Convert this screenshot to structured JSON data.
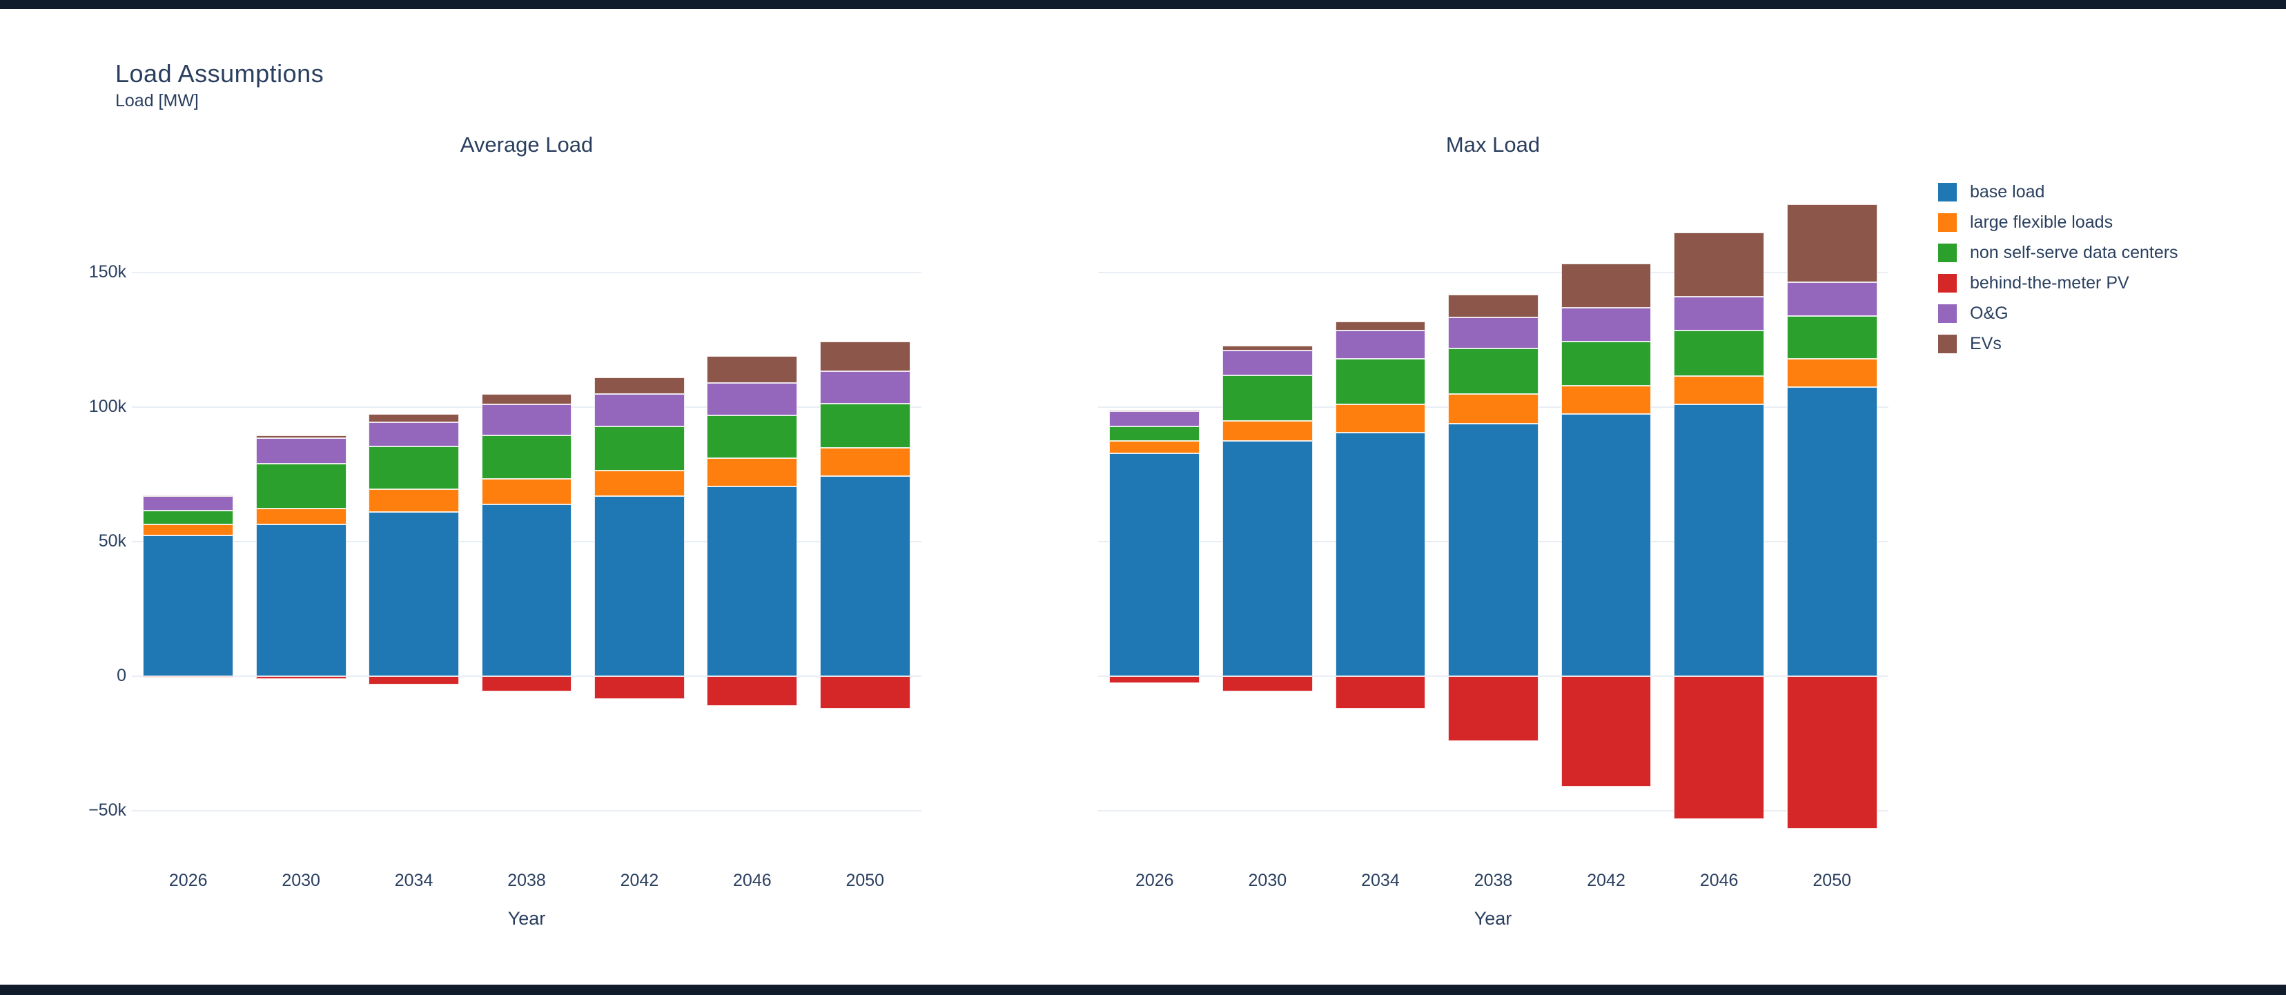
{
  "page": {
    "title": "Load Assumptions",
    "subtitle": "Load [MW]",
    "strip_color": "#101b2c",
    "text_color": "#2a3f5f",
    "grid_color": "#e9edf4",
    "background": "#ffffff"
  },
  "legend": {
    "position": "top-right",
    "items": [
      {
        "label": "base load",
        "color": "#1f77b4"
      },
      {
        "label": "large flexible loads",
        "color": "#ff7f0e"
      },
      {
        "label": "non self-serve data centers",
        "color": "#2ca02c"
      },
      {
        "label": "behind-the-meter PV",
        "color": "#d62728"
      },
      {
        "label": "O&G",
        "color": "#9467bd"
      },
      {
        "label": "EVs",
        "color": "#8c564b"
      }
    ]
  },
  "layout_values": {
    "y_axis_side": "left-plot-only",
    "bar_mode": "relative-stacked"
  },
  "chart_data": [
    {
      "type": "bar",
      "title": "Average Load",
      "xlabel": "Year",
      "ylabel": "Load [MW]",
      "stacked": true,
      "grid": true,
      "ylim": [
        -63500,
        177000
      ],
      "y_ticks": [
        {
          "label": "150k",
          "value": 150000
        },
        {
          "label": "100k",
          "value": 100000
        },
        {
          "label": "50k",
          "value": 50000
        },
        {
          "label": "0",
          "value": 0
        },
        {
          "label": "−50k",
          "value": -50000
        }
      ],
      "categories": [
        "2026",
        "2030",
        "2034",
        "2038",
        "2042",
        "2046",
        "2050"
      ],
      "series": [
        {
          "name": "base load",
          "color": "#1f77b4",
          "values": [
            52500,
            56500,
            61000,
            64000,
            67000,
            70500,
            74500
          ]
        },
        {
          "name": "large flexible loads",
          "color": "#ff7f0e",
          "values": [
            4000,
            6000,
            8500,
            9500,
            9500,
            10500,
            10500
          ]
        },
        {
          "name": "non self-serve data centers",
          "color": "#2ca02c",
          "values": [
            5000,
            16500,
            16000,
            16000,
            16500,
            16000,
            16300
          ]
        },
        {
          "name": "behind-the-meter PV",
          "color": "#d62728",
          "values": [
            -500,
            -1000,
            -3000,
            -5500,
            -8500,
            -11000,
            -12000
          ]
        },
        {
          "name": "O&G",
          "color": "#9467bd",
          "values": [
            5500,
            9500,
            9000,
            11500,
            12000,
            12000,
            12000
          ]
        },
        {
          "name": "EVs",
          "color": "#8c564b",
          "values": [
            300,
            1000,
            3000,
            4000,
            6000,
            10000,
            11200
          ]
        }
      ]
    },
    {
      "type": "bar",
      "title": "Max Load",
      "xlabel": "Year",
      "ylabel": "Load [MW]",
      "stacked": true,
      "grid": true,
      "ylim": [
        -63500,
        177000
      ],
      "y_ticks": [
        {
          "label": "150k",
          "value": 150000
        },
        {
          "label": "100k",
          "value": 100000
        },
        {
          "label": "50k",
          "value": 50000
        },
        {
          "label": "0",
          "value": 0
        },
        {
          "label": "−50k",
          "value": -50000
        }
      ],
      "categories": [
        "2026",
        "2030",
        "2034",
        "2038",
        "2042",
        "2046",
        "2050"
      ],
      "series": [
        {
          "name": "base load",
          "color": "#1f77b4",
          "values": [
            83000,
            87500,
            90500,
            94000,
            97500,
            101000,
            107500
          ]
        },
        {
          "name": "large flexible loads",
          "color": "#ff7f0e",
          "values": [
            4500,
            7500,
            10500,
            11000,
            10500,
            10500,
            10500
          ]
        },
        {
          "name": "non self-serve data centers",
          "color": "#2ca02c",
          "values": [
            5500,
            17000,
            17000,
            17000,
            16500,
            17000,
            16000
          ]
        },
        {
          "name": "behind-the-meter PV",
          "color": "#d62728",
          "values": [
            -2500,
            -5500,
            -12000,
            -24000,
            -41000,
            -53000,
            -56500
          ]
        },
        {
          "name": "O&G",
          "color": "#9467bd",
          "values": [
            5500,
            9000,
            10500,
            11500,
            12500,
            12500,
            12500
          ]
        },
        {
          "name": "EVs",
          "color": "#8c564b",
          "values": [
            500,
            2000,
            3500,
            8500,
            16500,
            24000,
            29000
          ]
        }
      ]
    }
  ]
}
